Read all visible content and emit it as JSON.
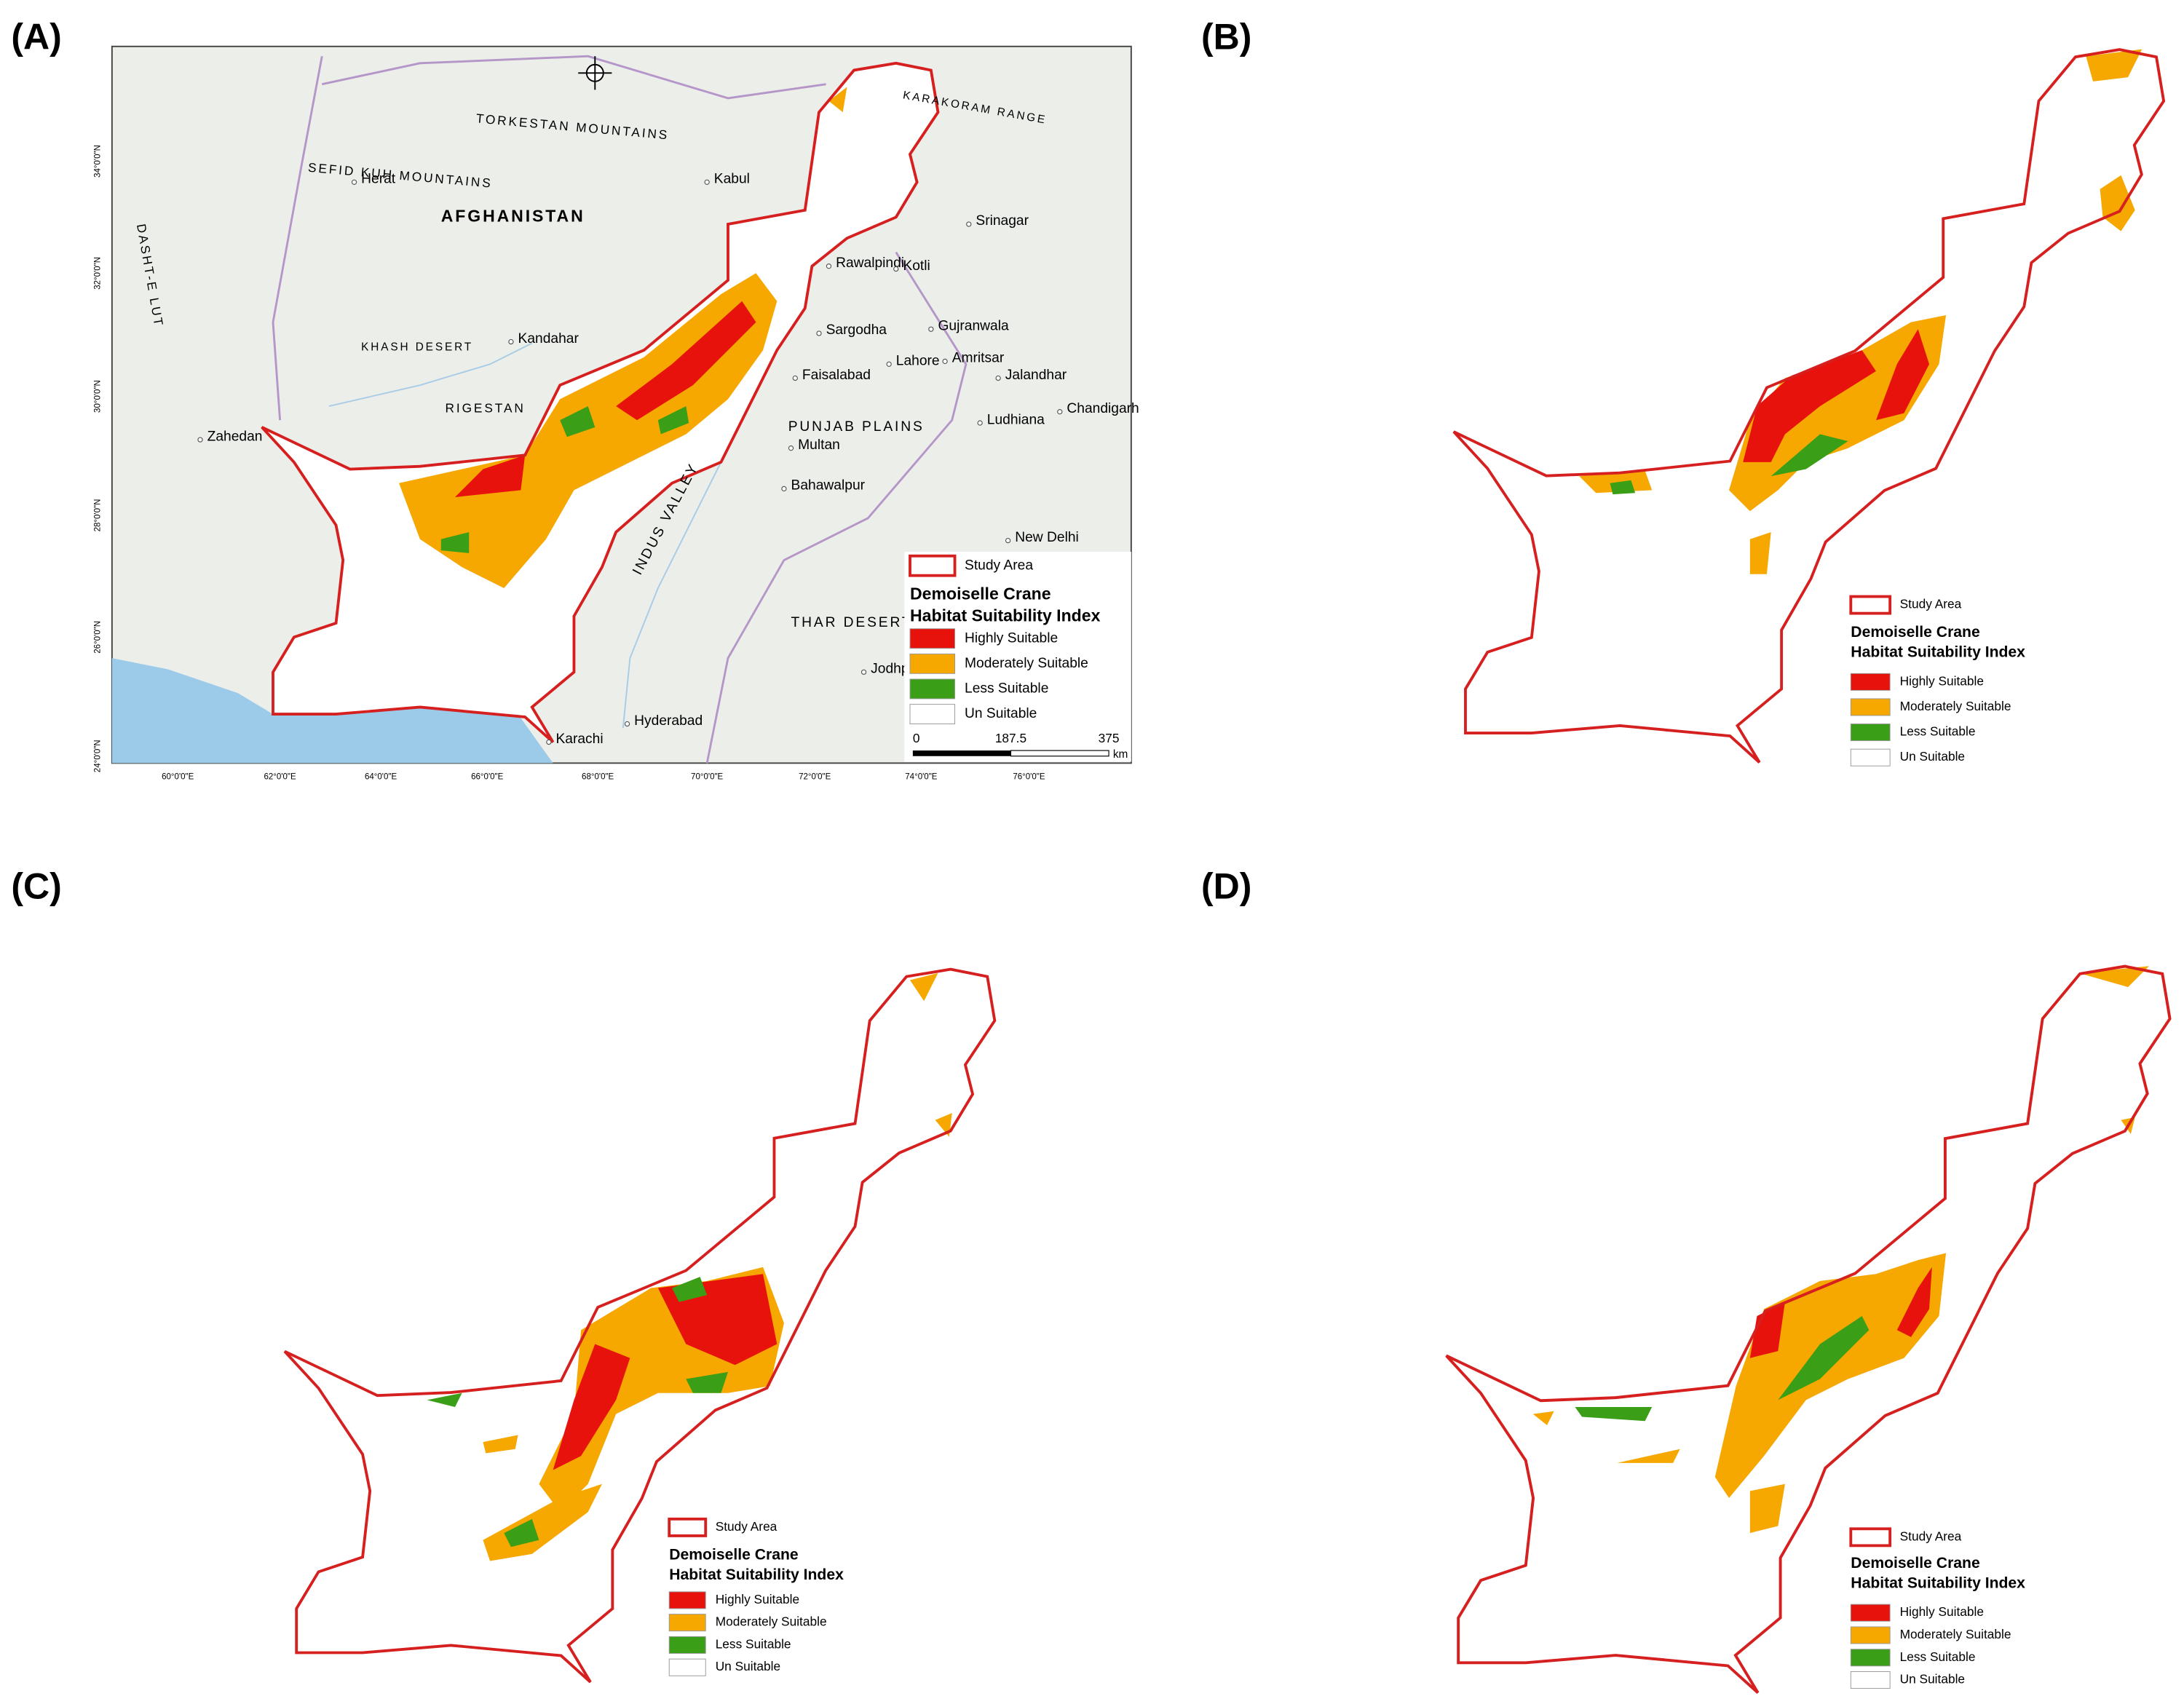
{
  "panels": [
    "(A)",
    "(B)",
    "(C)",
    "(D)"
  ],
  "legend": {
    "study_area": "Study Area",
    "title_lines": [
      "Demoiselle Crane",
      "Habitat Suitability Index"
    ],
    "items": [
      {
        "label": "Highly Suitable",
        "color": "#e8120c"
      },
      {
        "label": "Moderately Suitable",
        "color": "#f6a700"
      },
      {
        "label": "Less Suitable",
        "color": "#3a9e16"
      },
      {
        "label": "Un Suitable",
        "color": "#ffffff"
      }
    ]
  },
  "scale_bar": {
    "ticks": [
      0,
      187.5,
      375
    ],
    "unit": "km"
  },
  "graticule": {
    "longitudes": [
      "60°0'0\"E",
      "62°0'0\"E",
      "64°0'0\"E",
      "66°0'0\"E",
      "68°0'0\"E",
      "70°0'0\"E",
      "72°0'0\"E",
      "74°0'0\"E",
      "76°0'0\"E"
    ],
    "latitudes": [
      "34°0'0\"N",
      "32°0'0\"N",
      "30°0'0\"N",
      "28°0'0\"N",
      "26°0'0\"N",
      "24°0'0\"N"
    ]
  },
  "map_labels": {
    "places": [
      "Kabul",
      "Herat",
      "Kandahar",
      "Zahedan",
      "Rawalpindi",
      "Kotli",
      "Srinagar",
      "Sargodha",
      "Gujranwala",
      "Faisalabad",
      "Lahore",
      "Amritsar",
      "Jalandhar",
      "Ludhiana",
      "Chandigarh",
      "Multan",
      "Bahawalpur",
      "New Delhi",
      "Hyderabad",
      "Karachi",
      "Jodhpur"
    ],
    "regions": [
      "AFGHANISTAN",
      "TORKESTAN MOUNTAINS",
      "SEFID KUH MOUNTAINS",
      "KHASH DESERT",
      "RIGESTAN",
      "DASHT-E LUT",
      "PUNJAB PLAINS",
      "THAR DESERT",
      "INDUS VALLEY",
      "KARAKORAM RANGE"
    ]
  }
}
